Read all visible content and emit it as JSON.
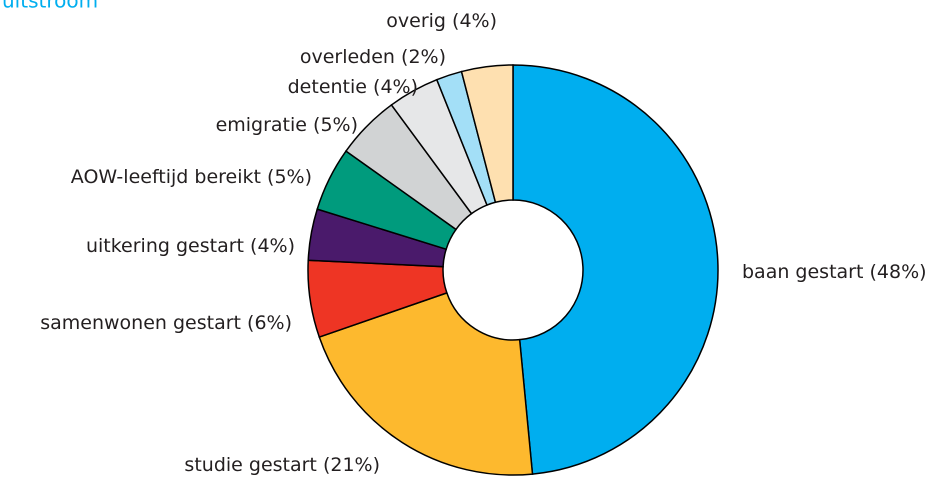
{
  "chart_data": {
    "type": "donut",
    "title": "uitstroom",
    "categories": [
      "baan gestart",
      "studie gestart",
      "samenwonen gestart",
      "uitkering gestart",
      "AOW-leeftijd bereikt",
      "emigratie",
      "detentie",
      "overleden",
      "overig"
    ],
    "values": [
      48,
      21,
      6,
      4,
      5,
      5,
      4,
      2,
      4
    ],
    "value_labels": [
      "(48%)",
      "(21%)",
      "(6%)",
      "(4%)",
      "(5%)",
      "(5%)",
      "(4%)",
      "(2%)",
      "(4%)"
    ],
    "colors": [
      "#00aeef",
      "#fdb92e",
      "#ee3524",
      "#4a1a6b",
      "#009b7d",
      "#d1d3d4",
      "#e6e7e8",
      "#a3dff7",
      "#fee0b0"
    ]
  }
}
